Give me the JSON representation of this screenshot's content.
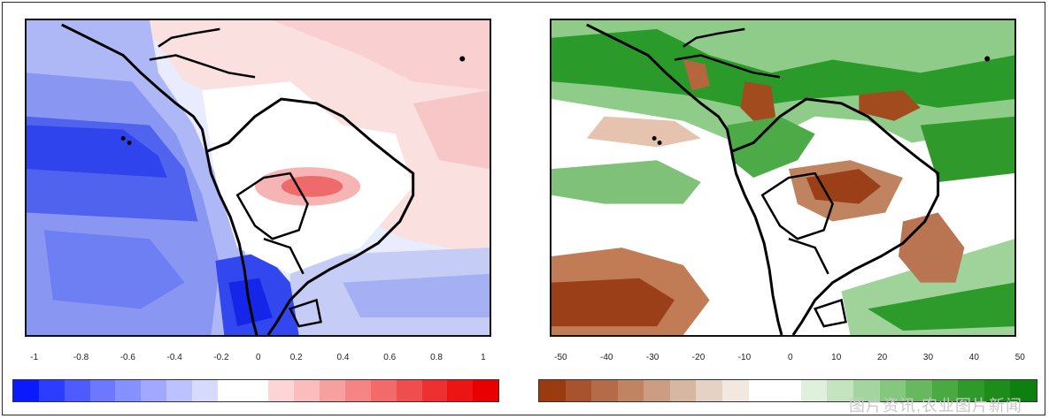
{
  "panels": [
    {
      "id": "temperature",
      "colorbar": {
        "ticks": [
          "-1",
          "-0.8",
          "-0.6",
          "-0.4",
          "-0.2",
          "0",
          "0.2",
          "0.4",
          "0.6",
          "0.8",
          "1"
        ],
        "colors": [
          "#0a1aff",
          "#2b3dff",
          "#4e5cff",
          "#6b78ff",
          "#8591ff",
          "#a0a9ff",
          "#bcc2ff",
          "#d6dafc",
          "#ffffff",
          "#ffffff",
          "#fcd6d6",
          "#fbbcbc",
          "#f7a0a0",
          "#f58585",
          "#f26a6a",
          "#f04e4e",
          "#ee3030",
          "#ec1414",
          "#e80000"
        ]
      },
      "palette": {
        "neg_strong": "#1f2ff5",
        "neg": "#6575f0",
        "neg_light": "#b7c0f3",
        "neutral": "#ffffff",
        "pos_light": "#f7d4d4",
        "pos": "#f48d8d",
        "pos_strong": "#ef4f4f"
      }
    },
    {
      "id": "precipitation",
      "colorbar": {
        "ticks": [
          "-50",
          "-40",
          "-30",
          "-20",
          "-10",
          "0",
          "10",
          "20",
          "30",
          "40",
          "50"
        ],
        "colors": [
          "#9a3a10",
          "#a8532d",
          "#b56a48",
          "#c18463",
          "#cc9d82",
          "#d8b7a2",
          "#e6d2c4",
          "#f2e8e0",
          "#ffffff",
          "#ffffff",
          "#dff0dc",
          "#c3e4be",
          "#a4d59f",
          "#86c77f",
          "#67b85f",
          "#4aa943",
          "#2f9a2b",
          "#1d8c1b",
          "#0f7f10"
        ]
      },
      "palette": {
        "dry_strong": "#9a3f17",
        "dry": "#c38a6a",
        "dry_light": "#e9d1c2",
        "neutral": "#ffffff",
        "wet_light": "#cfe8cb",
        "wet": "#6cbf67",
        "wet_strong": "#1f8f22"
      }
    }
  ],
  "watermark": "图片资讯,农业图片新闻"
}
